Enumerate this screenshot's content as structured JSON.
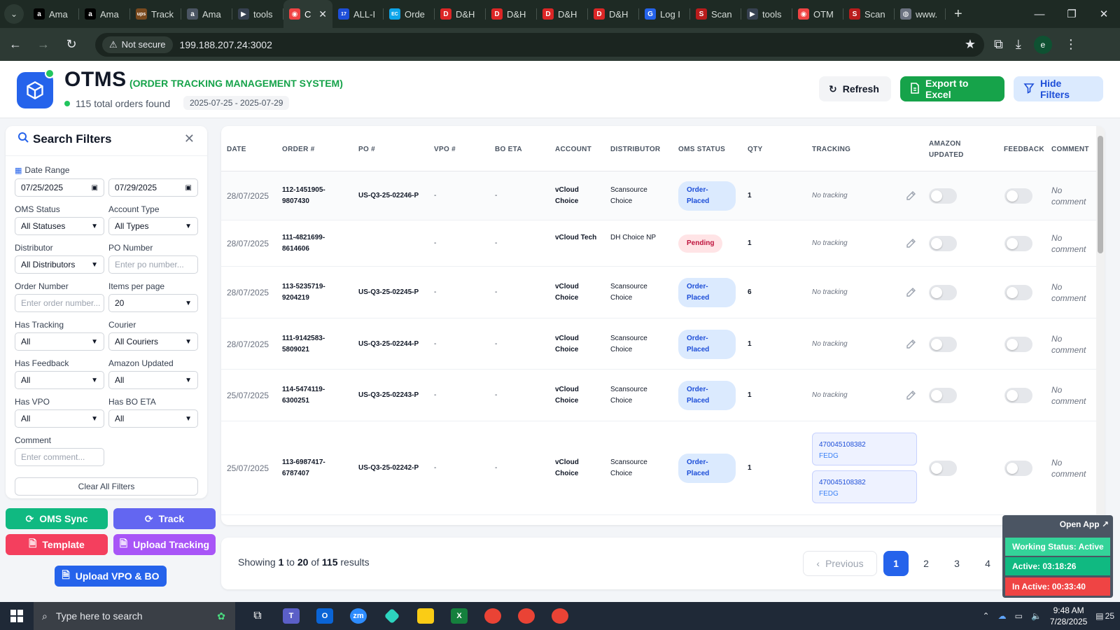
{
  "browser": {
    "tabs": [
      {
        "title": "Ama",
        "fav": "amazon-icon",
        "color": "#000000",
        "glyph": "a"
      },
      {
        "title": "Ama",
        "fav": "amazon-icon",
        "color": "#000000",
        "glyph": "a"
      },
      {
        "title": "Track",
        "fav": "ups-icon",
        "color": "#7a4a1e",
        "glyph": "ups"
      },
      {
        "title": "Ama",
        "fav": "amazon-icon",
        "color": "#4b5563",
        "glyph": "a"
      },
      {
        "title": "tools",
        "fav": "tools-icon",
        "color": "#374151",
        "glyph": "▶"
      },
      {
        "title": "C",
        "fav": "otms-icon",
        "color": "#ef4444",
        "glyph": "◉"
      },
      {
        "title": "ALL-I",
        "fav": "17track-icon",
        "color": "#1d4ed8",
        "glyph": "17"
      },
      {
        "title": "Orde",
        "fav": "ec-icon",
        "color": "#0ea5e9",
        "glyph": "EC"
      },
      {
        "title": "D&H",
        "fav": "dh-icon",
        "color": "#dc2626",
        "glyph": "D"
      },
      {
        "title": "D&H",
        "fav": "dh-icon",
        "color": "#dc2626",
        "glyph": "D"
      },
      {
        "title": "D&H",
        "fav": "dh-icon",
        "color": "#dc2626",
        "glyph": "D"
      },
      {
        "title": "D&H",
        "fav": "dh-icon",
        "color": "#dc2626",
        "glyph": "D"
      },
      {
        "title": "Log I",
        "fav": "login-icon",
        "color": "#2563eb",
        "glyph": "G"
      },
      {
        "title": "Scan",
        "fav": "scansource-icon",
        "color": "#b91c1c",
        "glyph": "S"
      },
      {
        "title": "tools",
        "fav": "tools-icon",
        "color": "#374151",
        "glyph": "▶"
      },
      {
        "title": "OTM",
        "fav": "otms-icon",
        "color": "#ef4444",
        "glyph": "◉"
      },
      {
        "title": "Scan",
        "fav": "scansource-icon",
        "color": "#b91c1c",
        "glyph": "S"
      },
      {
        "title": "www.",
        "fav": "globe-icon",
        "color": "#6b7280",
        "glyph": "◍"
      }
    ],
    "not_secure": "Not secure",
    "url": "199.188.207.24:3002"
  },
  "header": {
    "title": "OTMS",
    "subtitle": "(ORDER TRACKING MANAGEMENT SYSTEM)",
    "found": "115 total orders found",
    "range": "2025-07-25 - 2025-07-29",
    "refresh": "Refresh",
    "export": "Export to Excel",
    "hide": "Hide Filters"
  },
  "filters": {
    "title": "Search Filters",
    "date_label": "Date Range",
    "date_from": "07/25/2025",
    "date_to": "07/29/2025",
    "oms_status_label": "OMS Status",
    "oms_status": "All Statuses",
    "account_type_label": "Account Type",
    "account_type": "All Types",
    "distributor_label": "Distributor",
    "distributor": "All Distributors",
    "po_label": "PO Number",
    "po_placeholder": "Enter po number...",
    "order_label": "Order Number",
    "order_placeholder": "Enter order number...",
    "ipp_label": "Items per page",
    "ipp": "20",
    "has_tracking_label": "Has Tracking",
    "has_tracking": "All",
    "courier_label": "Courier",
    "courier": "All Couriers",
    "has_feedback_label": "Has Feedback",
    "has_feedback": "All",
    "amazon_updated_label": "Amazon Updated",
    "amazon_updated": "All",
    "has_vpo_label": "Has VPO",
    "has_vpo": "All",
    "has_bo_label": "Has BO ETA",
    "has_bo": "All",
    "comment_label": "Comment",
    "comment_placeholder": "Enter comment...",
    "clear": "Clear All Filters"
  },
  "actions": {
    "sync": "OMS Sync",
    "track": "Track",
    "template": "Template",
    "upload": "Upload Tracking",
    "vpo": "Upload VPO & BO"
  },
  "table": {
    "headers": {
      "date": "DATE",
      "order": "ORDER #",
      "po": "PO #",
      "vpo": "VPO #",
      "bo": "BO ETA",
      "account": "ACCOUNT",
      "distributor": "DISTRIBUTOR",
      "status": "OMS STATUS",
      "qty": "QTY",
      "tracking": "TRACKING",
      "amazon1": "AMAZON",
      "amazon2": "UPDATED",
      "feedback": "FEEDBACK",
      "comment": "COMMENT"
    },
    "rows": [
      {
        "date": "28/07/2025",
        "order1": "112-1451905-",
        "order2": "9807430",
        "po": "US-Q3-25-02246-P",
        "vpo": "-",
        "bo": "-",
        "acc1": "vCloud",
        "acc2": "Choice",
        "dist1": "Scansource",
        "dist2": "Choice",
        "status1": "Order-",
        "status2": "Placed",
        "qty": "1",
        "tracking": "No tracking",
        "comment1": "No",
        "comment2": "comment"
      },
      {
        "date": "28/07/2025",
        "order1": "111-4821699-",
        "order2": "8614606",
        "po": "",
        "vpo": "-",
        "bo": "-",
        "acc1": "vCloud Tech",
        "acc2": "",
        "dist1": "DH Choice NP",
        "dist2": "",
        "status1": "Pending",
        "status2": "",
        "qty": "1",
        "tracking": "No tracking",
        "comment1": "No",
        "comment2": "comment"
      },
      {
        "date": "28/07/2025",
        "order1": "113-5235719-",
        "order2": "9204219",
        "po": "US-Q3-25-02245-P",
        "vpo": "-",
        "bo": "-",
        "acc1": "vCloud",
        "acc2": "Choice",
        "dist1": "Scansource",
        "dist2": "Choice",
        "status1": "Order-",
        "status2": "Placed",
        "qty": "6",
        "tracking": "No tracking",
        "comment1": "No",
        "comment2": "comment"
      },
      {
        "date": "28/07/2025",
        "order1": "111-9142583-",
        "order2": "5809021",
        "po": "US-Q3-25-02244-P",
        "vpo": "-",
        "bo": "-",
        "acc1": "vCloud",
        "acc2": "Choice",
        "dist1": "Scansource",
        "dist2": "Choice",
        "status1": "Order-",
        "status2": "Placed",
        "qty": "1",
        "tracking": "No tracking",
        "comment1": "No",
        "comment2": "comment"
      },
      {
        "date": "25/07/2025",
        "order1": "114-5474119-",
        "order2": "6300251",
        "po": "US-Q3-25-02243-P",
        "vpo": "-",
        "bo": "-",
        "acc1": "vCloud",
        "acc2": "Choice",
        "dist1": "Scansource",
        "dist2": "Choice",
        "status1": "Order-",
        "status2": "Placed",
        "qty": "1",
        "tracking": "No tracking",
        "comment1": "No",
        "comment2": "comment"
      },
      {
        "date": "25/07/2025",
        "order1": "113-6987417-",
        "order2": "6787407",
        "po": "US-Q3-25-02242-P",
        "vpo": "-",
        "bo": "-",
        "acc1": "vCloud",
        "acc2": "Choice",
        "dist1": "Scansource",
        "dist2": "Choice",
        "status1": "Order-",
        "status2": "Placed",
        "qty": "1",
        "trk1": "470045108382",
        "car1": "FEDG",
        "trk2": "470045108382",
        "car2": "FEDG",
        "comment1": "No",
        "comment2": "comment"
      }
    ]
  },
  "pager": {
    "showing_prefix": "Showing",
    "from": "1",
    "to_word": "to",
    "to": "20",
    "of_word": "of",
    "total": "115",
    "suffix": "results",
    "previous": "Previous",
    "pages": [
      "1",
      "2",
      "3",
      "4"
    ]
  },
  "widget": {
    "open_app": "Open App",
    "status": "Working Status: Active",
    "active": "Active: 03:18:26",
    "inactive": "In Active: 00:33:40"
  },
  "taskbar": {
    "search": "Type here to search",
    "time": "9:48 AM",
    "date": "7/28/2025",
    "notif": "25"
  }
}
